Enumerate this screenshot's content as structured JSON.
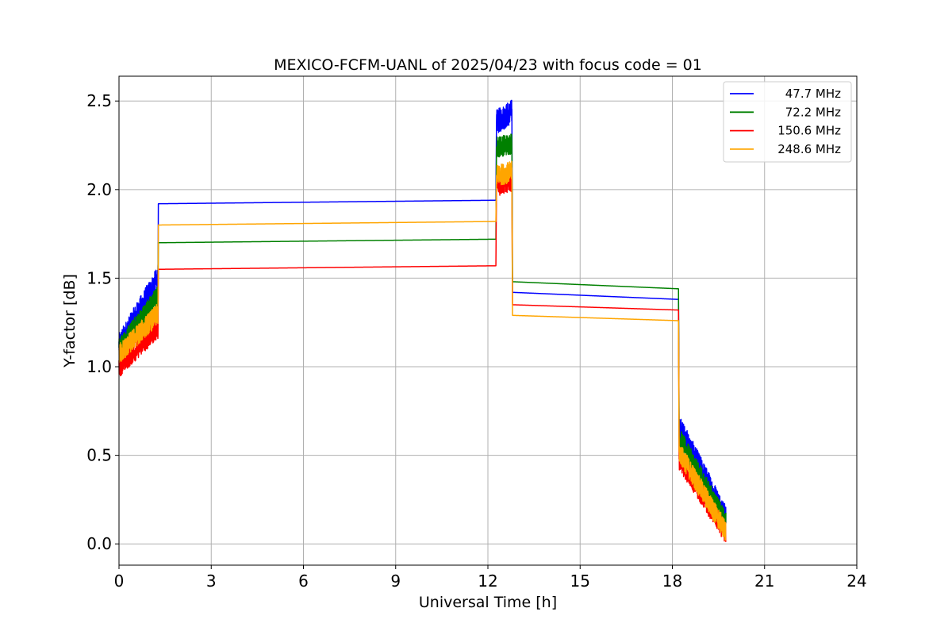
{
  "chart_data": {
    "type": "line",
    "title": "MEXICO-FCFM-UANL of 2025/04/23 with focus code = 01",
    "xlabel": "Universal Time [h]",
    "ylabel": "Y-factor [dB]",
    "xlim": [
      0,
      24
    ],
    "ylim": [
      -0.12,
      2.64
    ],
    "xticks": [
      0,
      3,
      6,
      9,
      12,
      15,
      18,
      21,
      24
    ],
    "yticks": [
      0.0,
      0.5,
      1.0,
      1.5,
      2.0,
      2.5
    ],
    "xtick_labels": [
      "0",
      "3",
      "6",
      "9",
      "12",
      "15",
      "18",
      "21",
      "24"
    ],
    "ytick_labels": [
      "0.0",
      "0.5",
      "1.0",
      "1.5",
      "2.0",
      "2.5"
    ],
    "grid": true,
    "legend": "top-right",
    "segments": [
      [
        0,
        1.27
      ],
      [
        12.28,
        12.78
      ],
      [
        18.22,
        19.74
      ]
    ],
    "series": [
      {
        "name": "47.7 MHz",
        "color": "#0000ff",
        "noise": 0.07,
        "x": [
          0,
          1.27,
          1.28,
          12.26,
          12.28,
          12.78,
          12.8,
          18.2,
          18.22,
          19.74
        ],
        "y": [
          1.12,
          1.5,
          1.92,
          1.94,
          2.38,
          2.44,
          1.42,
          1.38,
          0.66,
          0.15
        ]
      },
      {
        "name": "72.2 MHz",
        "color": "#008000",
        "noise": 0.06,
        "x": [
          0,
          1.27,
          1.28,
          12.26,
          12.28,
          12.78,
          12.8,
          18.2,
          18.22,
          19.74
        ],
        "y": [
          1.1,
          1.4,
          1.7,
          1.72,
          2.24,
          2.26,
          1.48,
          1.44,
          0.6,
          0.12
        ]
      },
      {
        "name": "150.6 MHz",
        "color": "#ff0000",
        "noise": 0.06,
        "x": [
          0,
          1.27,
          1.28,
          12.26,
          12.28,
          12.78,
          12.8,
          18.2,
          18.22,
          19.74
        ],
        "y": [
          1.0,
          1.22,
          1.55,
          1.57,
          2.02,
          2.05,
          1.35,
          1.32,
          0.48,
          0.06
        ]
      },
      {
        "name": "248.6 MHz",
        "color": "#ffa500",
        "noise": 0.06,
        "x": [
          0,
          1.27,
          1.28,
          12.26,
          12.28,
          12.78,
          12.8,
          18.2,
          18.22,
          19.74
        ],
        "y": [
          1.07,
          1.3,
          1.8,
          1.82,
          2.08,
          2.1,
          1.29,
          1.26,
          0.52,
          0.07
        ]
      }
    ]
  }
}
